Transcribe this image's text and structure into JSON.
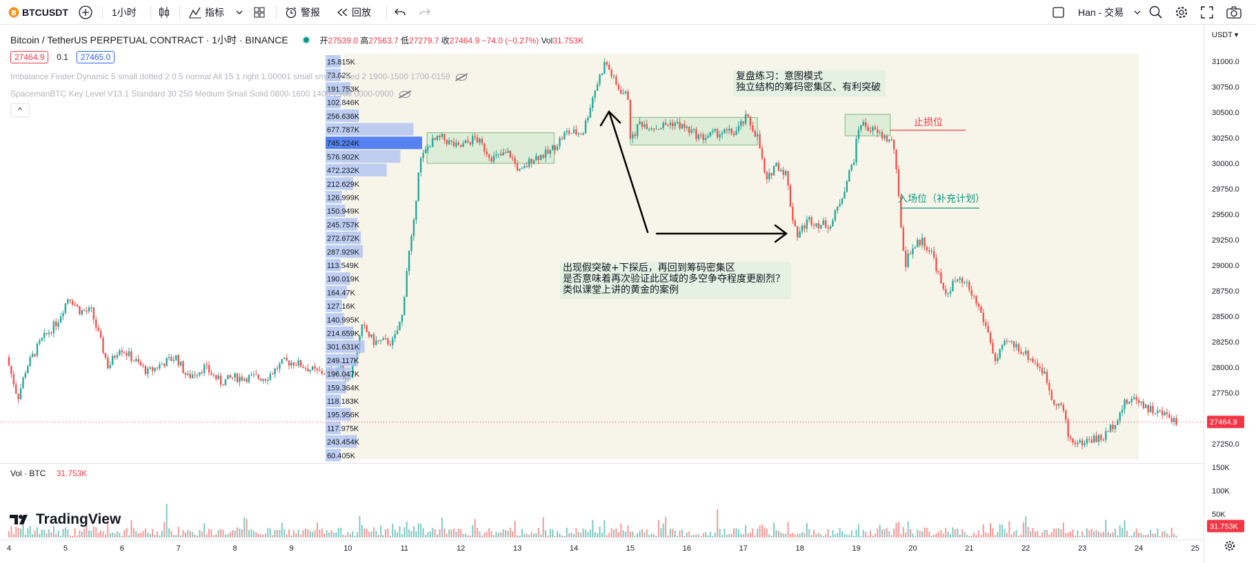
{
  "toolbar": {
    "symbol": "BTCUSDT",
    "interval": "1小时",
    "indicators_label": "指标",
    "alert_label": "警报",
    "replay_label": "回放",
    "account_label": "Han - 交易"
  },
  "header": {
    "title": "Bitcoin / TetherUS PERPETUAL CONTRACT · 1小时 · BINANCE",
    "ohlc": {
      "open_label": "开",
      "open": "27539.0",
      "high_label": "高",
      "high": "27563.7",
      "low_label": "低",
      "low": "27279.7",
      "close_label": "收",
      "close": "27464.9",
      "change": "−74.0 (−0.27%)",
      "vol_label": "Vol",
      "vol": "31.753K"
    },
    "sell_price": "27464.9",
    "spread": "0.1",
    "buy_price": "27465.0",
    "indicator1": "Imbalance Finder Dynamic 5 small dotted 2 0.5 normal All 15 1 right 1.00001 small small dotted 2 1900-1500 1700-0159",
    "indicator2": "SpacemanBTC Key Level V13.1 Standard 30 250 Medium Small Solid 0800-1600 1400-2100 0000-0900",
    "collapse_label": "^"
  },
  "volume_pane": {
    "label": "Vol · BTC",
    "value": "31.753K",
    "axis_labels": [
      "150K",
      "100K",
      "50K"
    ],
    "current_badge": "31.753K"
  },
  "price_axis": {
    "currency": "USDT",
    "current_badge": "27464.9"
  },
  "branding": "TradingView",
  "colors": {
    "up": "#26a69a",
    "down": "#ef5350",
    "accent": "#2962ff",
    "zone": "#c8e6c9",
    "profile": "#aec2f0",
    "profile_max": "#4c7bf0",
    "highlight_bg": "#f7f5e9"
  },
  "annotations": [
    {
      "id": "review",
      "lines": [
        "复盘练习：意图模式",
        "独立结构的筹码密集区、有利突破"
      ]
    },
    {
      "id": "question",
      "lines": [
        "出现假突破+下探后，再回到筹码密集区",
        "是否意味着再次验证此区域的多空争夺程度更剧烈？",
        "类似课堂上讲的黄金的案例"
      ]
    },
    {
      "id": "stop",
      "lines": [
        "止损位"
      ]
    },
    {
      "id": "entry",
      "lines": [
        "入场位（补充计划）"
      ]
    }
  ],
  "chart_data": {
    "type": "candlestick",
    "symbol": "BTCUSDT",
    "interval": "1h",
    "y_axis": {
      "ylim": [
        27100,
        31200
      ],
      "ticks": [
        31000,
        30750,
        30500,
        30250,
        30000,
        29750,
        29500,
        29250,
        29000,
        28750,
        28500,
        28250,
        28000,
        27750,
        27500,
        27250
      ]
    },
    "x_axis": {
      "ticks": [
        "4",
        "5",
        "6",
        "7",
        "8",
        "9",
        "10",
        "11",
        "12",
        "13",
        "14",
        "15",
        "16",
        "17",
        "18",
        "19",
        "20",
        "21",
        "22",
        "23",
        "24",
        "25"
      ],
      "range_days": [
        4,
        25
      ]
    },
    "last_price": 27464.9,
    "price_path": [
      [
        4.0,
        28100
      ],
      [
        4.2,
        27700
      ],
      [
        4.35,
        28000
      ],
      [
        4.6,
        28250
      ],
      [
        4.9,
        28450
      ],
      [
        5.1,
        28700
      ],
      [
        5.3,
        28550
      ],
      [
        5.5,
        28550
      ],
      [
        5.8,
        28000
      ],
      [
        6.0,
        28200
      ],
      [
        6.2,
        28100
      ],
      [
        6.5,
        27950
      ],
      [
        6.8,
        28050
      ],
      [
        7.0,
        28100
      ],
      [
        7.2,
        27900
      ],
      [
        7.5,
        28000
      ],
      [
        7.8,
        27850
      ],
      [
        8.0,
        27900
      ],
      [
        8.3,
        27900
      ],
      [
        8.6,
        27900
      ],
      [
        8.9,
        28050
      ],
      [
        9.1,
        28050
      ],
      [
        9.3,
        28000
      ],
      [
        9.5,
        27950
      ],
      [
        9.7,
        27950
      ],
      [
        9.9,
        28000
      ],
      [
        10.0,
        27900
      ],
      [
        10.1,
        27950
      ],
      [
        10.3,
        28400
      ],
      [
        10.5,
        28250
      ],
      [
        10.85,
        28250
      ],
      [
        11.0,
        28500
      ],
      [
        11.1,
        29050
      ],
      [
        11.2,
        29350
      ],
      [
        11.3,
        30000
      ],
      [
        11.5,
        30200
      ],
      [
        11.7,
        30250
      ],
      [
        12.0,
        30150
      ],
      [
        12.3,
        30250
      ],
      [
        12.6,
        30050
      ],
      [
        12.9,
        30100
      ],
      [
        13.1,
        29900
      ],
      [
        13.3,
        30050
      ],
      [
        13.6,
        30100
      ],
      [
        13.9,
        30300
      ],
      [
        14.2,
        30300
      ],
      [
        14.4,
        30700
      ],
      [
        14.6,
        31000
      ],
      [
        14.8,
        30750
      ],
      [
        15.0,
        30650
      ],
      [
        15.05,
        30200
      ],
      [
        15.2,
        30400
      ],
      [
        15.5,
        30350
      ],
      [
        15.8,
        30400
      ],
      [
        16.0,
        30350
      ],
      [
        16.3,
        30250
      ],
      [
        16.6,
        30300
      ],
      [
        16.9,
        30300
      ],
      [
        17.1,
        30450
      ],
      [
        17.3,
        30250
      ],
      [
        17.45,
        29800
      ],
      [
        17.6,
        30000
      ],
      [
        17.8,
        29900
      ],
      [
        17.9,
        29500
      ],
      [
        18.0,
        29300
      ],
      [
        18.2,
        29450
      ],
      [
        18.4,
        29400
      ],
      [
        18.6,
        29400
      ],
      [
        18.8,
        29700
      ],
      [
        19.0,
        30050
      ],
      [
        19.1,
        30400
      ],
      [
        19.4,
        30300
      ],
      [
        19.7,
        30200
      ],
      [
        19.75,
        29900
      ],
      [
        19.85,
        29300
      ],
      [
        19.9,
        29000
      ],
      [
        20.0,
        29150
      ],
      [
        20.2,
        29250
      ],
      [
        20.4,
        29100
      ],
      [
        20.6,
        28700
      ],
      [
        20.8,
        28850
      ],
      [
        21.0,
        28800
      ],
      [
        21.2,
        28600
      ],
      [
        21.4,
        28300
      ],
      [
        21.5,
        28050
      ],
      [
        21.7,
        28250
      ],
      [
        21.9,
        28200
      ],
      [
        22.1,
        28100
      ],
      [
        22.3,
        28000
      ],
      [
        22.4,
        27900
      ],
      [
        22.5,
        27700
      ],
      [
        22.7,
        27600
      ],
      [
        22.8,
        27300
      ],
      [
        23.0,
        27250
      ],
      [
        23.2,
        27300
      ],
      [
        23.4,
        27300
      ],
      [
        23.6,
        27450
      ],
      [
        23.8,
        27650
      ],
      [
        24.0,
        27700
      ],
      [
        24.2,
        27600
      ],
      [
        24.4,
        27550
      ],
      [
        24.6,
        27520
      ],
      [
        24.7,
        27465
      ]
    ],
    "volume_profile": [
      {
        "label": "15.815K",
        "value": 15.815
      },
      {
        "label": "73.62K",
        "value": 73.62
      },
      {
        "label": "191.753K",
        "value": 191.753
      },
      {
        "label": "102.846K",
        "value": 102.846
      },
      {
        "label": "256.636K",
        "value": 256.636
      },
      {
        "label": "677.787K",
        "value": 677.787
      },
      {
        "label": "745.224K",
        "value": 745.224
      },
      {
        "label": "576.902K",
        "value": 576.902
      },
      {
        "label": "472.232K",
        "value": 472.232
      },
      {
        "label": "212.629K",
        "value": 212.629
      },
      {
        "label": "126.999K",
        "value": 126.999
      },
      {
        "label": "150.949K",
        "value": 150.949
      },
      {
        "label": "245.757K",
        "value": 245.757
      },
      {
        "label": "272.672K",
        "value": 272.672
      },
      {
        "label": "287.929K",
        "value": 287.929
      },
      {
        "label": "113.549K",
        "value": 113.549
      },
      {
        "label": "190.019K",
        "value": 190.019
      },
      {
        "label": "164.47K",
        "value": 164.47
      },
      {
        "label": "127.16K",
        "value": 127.16
      },
      {
        "label": "140.995K",
        "value": 140.995
      },
      {
        "label": "214.659K",
        "value": 214.659
      },
      {
        "label": "301.631K",
        "value": 301.631
      },
      {
        "label": "249.117K",
        "value": 249.117
      },
      {
        "label": "196.047K",
        "value": 196.047
      },
      {
        "label": "159.364K",
        "value": 159.364
      },
      {
        "label": "118.183K",
        "value": 118.183
      },
      {
        "label": "195.956K",
        "value": 195.956
      },
      {
        "label": "117.975K",
        "value": 117.975
      },
      {
        "label": "243.454K",
        "value": 243.454
      },
      {
        "label": "60.405K",
        "value": 60.405
      }
    ],
    "zones": [
      {
        "x": [
          11.4,
          13.65
        ],
        "y": [
          30000,
          30300
        ]
      },
      {
        "x": [
          15.0,
          17.25
        ],
        "y": [
          30180,
          30450
        ]
      },
      {
        "x": [
          18.8,
          19.6
        ],
        "y": [
          30270,
          30480
        ]
      }
    ],
    "volume_axis": {
      "ylim": [
        0,
        150000
      ],
      "ticks": [
        150000,
        100000,
        50000
      ]
    }
  }
}
